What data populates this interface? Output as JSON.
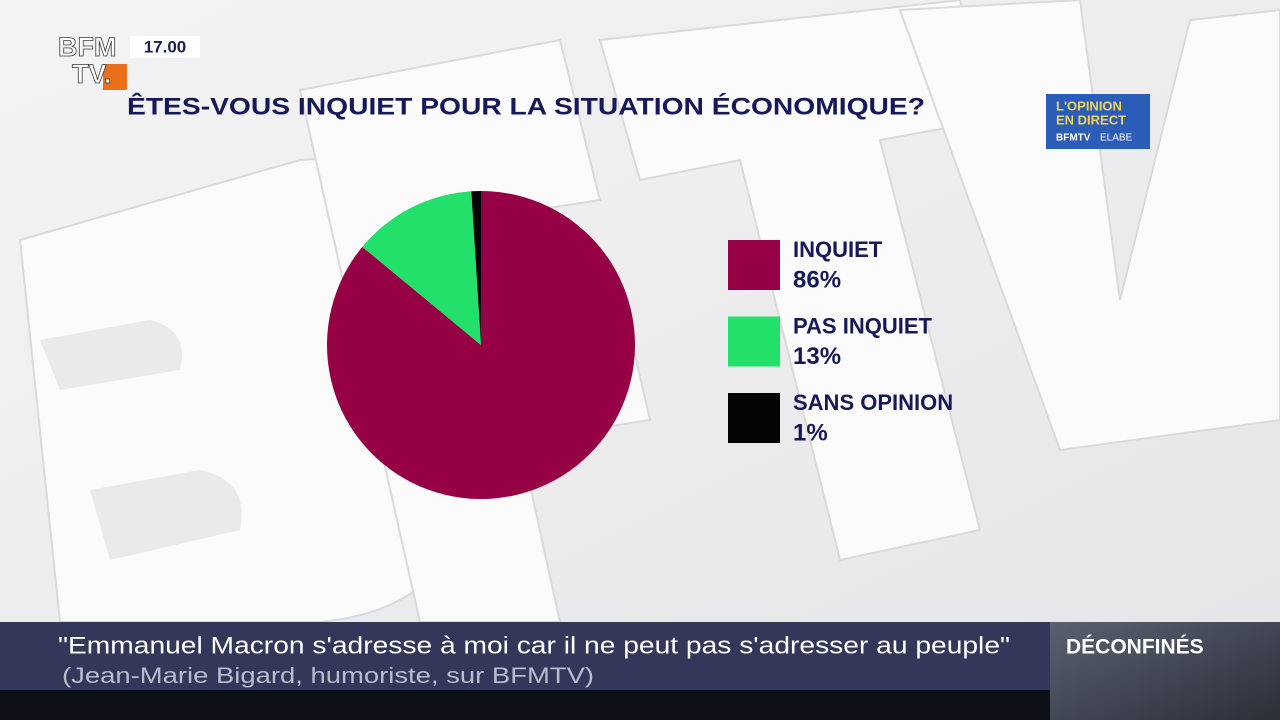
{
  "chart_data": {
    "type": "pie",
    "title": "ÊTES-VOUS INQUIET POUR LA SITUATION ÉCONOMIQUE?",
    "categories": [
      "INQUIET",
      "PAS INQUIET",
      "SANS OPINION"
    ],
    "values": [
      86,
      13,
      1
    ],
    "value_labels": [
      "86%",
      "13%",
      "1%"
    ],
    "colors": [
      "#960045",
      "#23e06b",
      "#050505"
    ]
  },
  "overlay": {
    "logo": [
      "BFM",
      "TV."
    ],
    "time": "17.00",
    "badge": [
      "L'OPINION",
      "EN DIRECT",
      "BFMTV",
      "ELABE"
    ],
    "quote": "\"Emmanuel Macron s'adresse à moi car il ne peut pas s'adresser au peuple\"",
    "attribution": "(Jean-Marie Bigard, humoriste, sur BFMTV)",
    "segment": "DÉCONFINÉS"
  }
}
